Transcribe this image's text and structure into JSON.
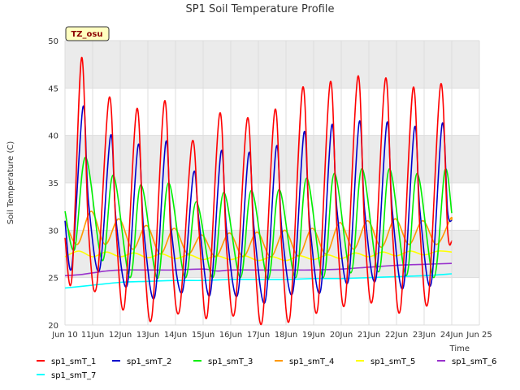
{
  "chart_data": {
    "type": "line",
    "title": "SP1 Soil Temperature Profile",
    "xlabel": "Time",
    "ylabel": "Soil Temperature (C)",
    "badge": "TZ_osu",
    "xlim": [
      10.0,
      25.0
    ],
    "ylim": [
      20,
      50
    ],
    "x_ticks": [
      {
        "v": 10,
        "label": "Jun 10"
      },
      {
        "v": 11,
        "label": "11Jun"
      },
      {
        "v": 12,
        "label": "12Jun"
      },
      {
        "v": 13,
        "label": "13Jun"
      },
      {
        "v": 14,
        "label": "14Jun"
      },
      {
        "v": 15,
        "label": "15Jun"
      },
      {
        "v": 16,
        "label": "16Jun"
      },
      {
        "v": 17,
        "label": "17Jun"
      },
      {
        "v": 18,
        "label": "18Jun"
      },
      {
        "v": 19,
        "label": "19Jun"
      },
      {
        "v": 20,
        "label": "20Jun"
      },
      {
        "v": 21,
        "label": "21Jun"
      },
      {
        "v": 22,
        "label": "22Jun"
      },
      {
        "v": 23,
        "label": "23Jun"
      },
      {
        "v": 24,
        "label": "24Jun"
      },
      {
        "v": 25,
        "label": "Jun 25"
      }
    ],
    "y_ticks": [
      20,
      25,
      30,
      35,
      40,
      45,
      50
    ],
    "legend_position": "bottom",
    "series": [
      {
        "name": "sp1_smT_1",
        "color": "#ff0000",
        "days": [
          10.0,
          10.25,
          10.6,
          10.85,
          11.15,
          11.6,
          11.85,
          12.15,
          12.6,
          12.85,
          13.15,
          13.6,
          13.85,
          14.15,
          14.6,
          14.85,
          15.15,
          15.6,
          15.85,
          16.15,
          16.6,
          16.85,
          17.15,
          17.6,
          17.85,
          18.15,
          18.6,
          18.85,
          19.15,
          19.6,
          19.85,
          20.15,
          20.6,
          20.85,
          21.15,
          21.6,
          21.85,
          22.15,
          22.6,
          22.85,
          23.15,
          23.6,
          23.85,
          24.0
        ],
        "values": [
          29.2,
          25.0,
          48.2,
          30.0,
          24.2,
          44.0,
          30.0,
          22.0,
          42.8,
          28.0,
          21.0,
          43.6,
          28.0,
          21.6,
          39.3,
          30.0,
          21.0,
          42.3,
          28.0,
          21.5,
          41.8,
          28.0,
          20.6,
          42.7,
          28.0,
          21.0,
          45.0,
          30.0,
          21.8,
          45.6,
          30.0,
          22.6,
          46.2,
          30.0,
          23.0,
          46.0,
          30.0,
          21.8,
          45.0,
          30.0,
          22.6,
          45.4,
          30.0,
          28.8
        ]
      },
      {
        "name": "sp1_smT_2",
        "color": "#0000cc",
        "days": [
          10.0,
          10.25,
          10.65,
          10.85,
          11.25,
          11.65,
          11.85,
          12.25,
          12.65,
          12.85,
          13.25,
          13.65,
          13.85,
          14.25,
          14.65,
          14.85,
          15.25,
          15.65,
          15.85,
          16.25,
          16.65,
          16.85,
          17.25,
          17.65,
          17.85,
          18.25,
          18.65,
          18.85,
          19.25,
          19.65,
          19.85,
          20.25,
          20.65,
          20.85,
          21.25,
          21.65,
          21.85,
          22.25,
          22.65,
          22.85,
          23.25,
          23.65,
          23.85,
          24.0
        ],
        "values": [
          31.0,
          26.2,
          43.0,
          33.0,
          25.8,
          40.0,
          31.0,
          24.2,
          39.0,
          30.0,
          23.0,
          39.3,
          30.0,
          23.5,
          36.0,
          31.0,
          23.2,
          38.3,
          30.0,
          23.2,
          38.1,
          30.0,
          22.5,
          38.8,
          30.0,
          23.5,
          40.3,
          31.0,
          23.6,
          41.0,
          32.0,
          24.6,
          41.4,
          32.0,
          24.8,
          41.3,
          32.0,
          24.0,
          40.8,
          32.0,
          24.3,
          41.2,
          32.0,
          31.0
        ]
      },
      {
        "name": "sp1_smT_3",
        "color": "#00ee00",
        "days": [
          10.0,
          10.35,
          10.75,
          11.35,
          11.75,
          12.35,
          12.75,
          13.35,
          13.75,
          14.35,
          14.75,
          15.35,
          15.75,
          16.35,
          16.75,
          17.35,
          17.75,
          18.35,
          18.75,
          19.35,
          19.75,
          20.35,
          20.75,
          21.35,
          21.75,
          22.35,
          22.75,
          23.35,
          23.75,
          24.0
        ],
        "values": [
          32.0,
          28.0,
          37.7,
          26.8,
          35.8,
          25.0,
          34.8,
          24.9,
          35.0,
          25.0,
          33.0,
          25.0,
          34.0,
          25.0,
          34.2,
          24.8,
          34.3,
          25.0,
          35.5,
          25.0,
          36.0,
          25.5,
          36.5,
          25.6,
          36.5,
          25.2,
          36.0,
          25.0,
          36.3,
          31.8
        ]
      },
      {
        "name": "sp1_smT_4",
        "color": "#ff9900",
        "days": [
          10.0,
          10.45,
          10.95,
          11.45,
          11.95,
          12.45,
          12.95,
          13.45,
          13.95,
          14.45,
          14.95,
          15.45,
          15.95,
          16.45,
          16.95,
          17.45,
          17.95,
          18.45,
          18.95,
          19.45,
          19.95,
          20.45,
          20.95,
          21.45,
          21.95,
          22.45,
          22.95,
          23.45,
          23.95,
          24.0
        ],
        "values": [
          31.0,
          28.5,
          32.0,
          28.5,
          31.2,
          28.0,
          30.5,
          27.5,
          30.2,
          27.5,
          29.5,
          27.2,
          29.7,
          27.2,
          29.8,
          27.2,
          30.0,
          27.3,
          30.2,
          27.5,
          30.8,
          28.0,
          31.0,
          28.2,
          31.2,
          28.5,
          31.0,
          28.5,
          31.2,
          31.0
        ]
      },
      {
        "name": "sp1_smT_5",
        "color": "#ffff00",
        "days": [
          10.0,
          10.5,
          11.0,
          11.5,
          12.0,
          12.5,
          13.0,
          13.5,
          14.0,
          14.5,
          15.0,
          15.5,
          16.0,
          16.5,
          17.0,
          17.5,
          18.0,
          18.5,
          19.0,
          19.5,
          20.0,
          20.5,
          21.0,
          21.5,
          22.0,
          22.5,
          23.0,
          23.5,
          24.0
        ],
        "values": [
          27.2,
          27.8,
          27.2,
          27.7,
          27.2,
          27.6,
          27.1,
          27.5,
          27.0,
          27.4,
          26.9,
          27.3,
          26.9,
          27.3,
          26.8,
          27.2,
          26.8,
          27.3,
          26.9,
          27.4,
          27.0,
          27.6,
          27.2,
          27.7,
          27.3,
          27.8,
          27.4,
          27.8,
          27.7
        ]
      },
      {
        "name": "sp1_smT_6",
        "color": "#9932cc",
        "days": [
          10.0,
          10.5,
          11.0,
          11.5,
          12.0,
          13.0,
          14.0,
          15.0,
          15.5,
          16.0,
          17.0,
          18.0,
          19.0,
          20.0,
          21.0,
          22.0,
          23.0,
          24.0
        ],
        "values": [
          25.2,
          25.3,
          25.5,
          25.7,
          25.8,
          25.8,
          25.8,
          25.9,
          25.7,
          25.8,
          25.8,
          25.8,
          25.8,
          25.9,
          26.1,
          26.3,
          26.4,
          26.5
        ]
      },
      {
        "name": "sp1_smT_7",
        "color": "#00ffff",
        "days": [
          10.0,
          11.0,
          12.0,
          13.0,
          14.0,
          15.0,
          16.0,
          17.0,
          18.0,
          19.0,
          20.0,
          21.0,
          22.0,
          23.0,
          24.0
        ],
        "values": [
          23.9,
          24.2,
          24.5,
          24.6,
          24.7,
          24.7,
          24.8,
          24.8,
          24.8,
          24.9,
          24.9,
          25.0,
          25.1,
          25.2,
          25.4
        ]
      }
    ]
  }
}
